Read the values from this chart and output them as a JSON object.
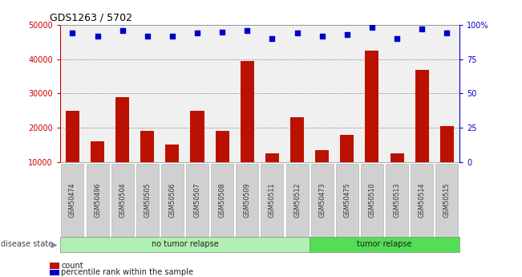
{
  "title": "GDS1263 / 5702",
  "samples": [
    "GSM50474",
    "GSM50496",
    "GSM50504",
    "GSM50505",
    "GSM50506",
    "GSM50507",
    "GSM50508",
    "GSM50509",
    "GSM50511",
    "GSM50512",
    "GSM50473",
    "GSM50475",
    "GSM50510",
    "GSM50513",
    "GSM50514",
    "GSM50515"
  ],
  "counts": [
    25000,
    16000,
    29000,
    19000,
    15000,
    25000,
    19000,
    39500,
    12500,
    23000,
    13500,
    18000,
    42500,
    12500,
    37000,
    20500
  ],
  "percentiles": [
    94,
    92,
    96,
    92,
    92,
    94,
    95,
    96,
    90,
    94,
    92,
    93,
    98,
    90,
    97,
    94
  ],
  "no_relapse_count": 10,
  "relapse_count": 6,
  "groups": [
    {
      "label": "no tumor relapse",
      "start": 0,
      "end": 10,
      "color": "#b0f0b0"
    },
    {
      "label": "tumor relapse",
      "start": 10,
      "end": 16,
      "color": "#55dd55"
    }
  ],
  "bar_color": "#bb1100",
  "dot_color": "#0000cc",
  "ylim_left": [
    10000,
    50000
  ],
  "ylim_right": [
    0,
    100
  ],
  "yticks_left": [
    10000,
    20000,
    30000,
    40000,
    50000
  ],
  "yticks_right": [
    0,
    25,
    50,
    75,
    100
  ],
  "background_color": "#ffffff",
  "title_color": "#000000",
  "left_axis_color": "#cc0000",
  "right_axis_color": "#0000cc",
  "tick_bg_color": "#d0d0d0"
}
